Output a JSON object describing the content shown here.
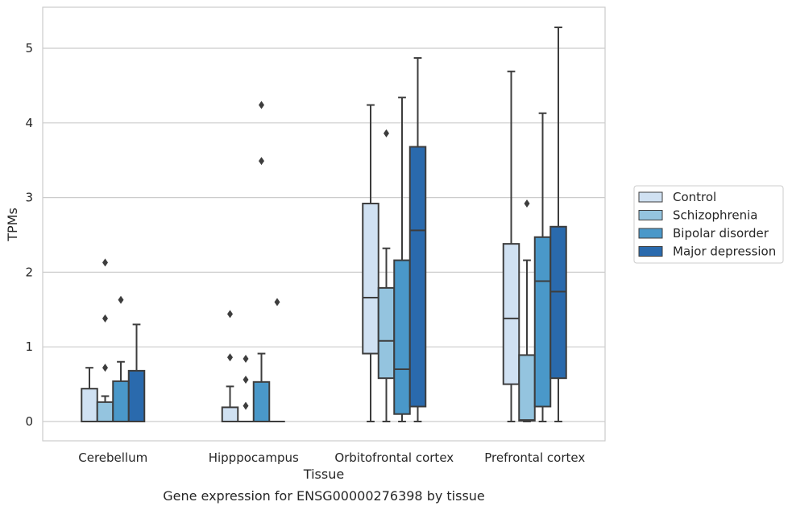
{
  "caption": "Gene expression for ENSG00000276398 by tissue",
  "chart_data": {
    "type": "box",
    "title": "",
    "xlabel": "Tissue",
    "ylabel": "TPMs",
    "ylim": [
      -0.25,
      5.5
    ],
    "yticks": [
      0,
      1,
      2,
      3,
      4,
      5
    ],
    "grid": true,
    "legend_position": "right",
    "categories": [
      "Cerebellum",
      "Hipppocampus",
      "Orbitofrontal cortex",
      "Prefrontal cortex"
    ],
    "series": [
      {
        "name": "Control",
        "color": "#d0e1f2",
        "boxes": [
          {
            "min": 0,
            "q1": 0,
            "median": 0,
            "q3": 0.44,
            "max": 0.72,
            "outliers": []
          },
          {
            "min": 0,
            "q1": 0,
            "median": 0,
            "q3": 0.19,
            "max": 0.47,
            "outliers": [
              0.86,
              1.44
            ]
          },
          {
            "min": 0,
            "q1": 0.91,
            "median": 1.66,
            "q3": 2.92,
            "max": 4.24,
            "outliers": []
          },
          {
            "min": 0,
            "q1": 0.5,
            "median": 1.38,
            "q3": 2.38,
            "max": 4.69,
            "outliers": []
          }
        ]
      },
      {
        "name": "Schizophrenia",
        "color": "#94c4df",
        "boxes": [
          {
            "min": 0,
            "q1": 0,
            "median": 0,
            "q3": 0.26,
            "max": 0.34,
            "outliers": [
              0.72,
              1.38,
              2.13
            ]
          },
          {
            "min": 0,
            "q1": 0,
            "median": 0,
            "q3": 0,
            "max": 0,
            "outliers": [
              0.21,
              0.56,
              0.84
            ]
          },
          {
            "min": 0,
            "q1": 0.58,
            "median": 1.08,
            "q3": 1.79,
            "max": 2.32,
            "outliers": [
              3.86
            ]
          },
          {
            "min": 0,
            "q1": 0.01,
            "median": 0.02,
            "q3": 0.89,
            "max": 2.16,
            "outliers": [
              2.92
            ]
          }
        ]
      },
      {
        "name": "Bipolar disorder",
        "color": "#4a98c9",
        "boxes": [
          {
            "min": 0,
            "q1": 0,
            "median": 0,
            "q3": 0.54,
            "max": 0.8,
            "outliers": [
              1.63
            ]
          },
          {
            "min": 0,
            "q1": 0,
            "median": 0,
            "q3": 0.53,
            "max": 0.91,
            "outliers": [
              3.49,
              4.24
            ]
          },
          {
            "min": 0,
            "q1": 0.1,
            "median": 0.7,
            "q3": 2.16,
            "max": 4.34,
            "outliers": []
          },
          {
            "min": 0,
            "q1": 0.2,
            "median": 1.88,
            "q3": 2.47,
            "max": 4.13,
            "outliers": []
          }
        ]
      },
      {
        "name": "Major depression",
        "color": "#2a6aad",
        "boxes": [
          {
            "min": 0,
            "q1": 0,
            "median": 0,
            "q3": 0.68,
            "max": 1.3,
            "outliers": []
          },
          {
            "min": 0,
            "q1": 0,
            "median": 0,
            "q3": 0,
            "max": 0,
            "outliers": [
              1.6
            ]
          },
          {
            "min": 0,
            "q1": 0.2,
            "median": 2.56,
            "q3": 3.68,
            "max": 4.87,
            "outliers": []
          },
          {
            "min": 0,
            "q1": 0.58,
            "median": 1.74,
            "q3": 2.61,
            "max": 5.28,
            "outliers": []
          }
        ]
      }
    ]
  }
}
